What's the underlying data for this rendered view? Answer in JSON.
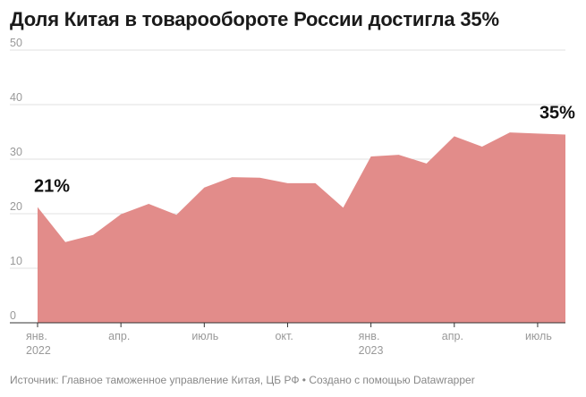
{
  "title": "Доля Китая в товарообороте России достигла 35%",
  "footer": "Источник: Главное таможенное управление Китая, ЦБ РФ • Создано с помощью Datawrapper",
  "chart_data": {
    "type": "area",
    "title": "Доля Китая в товарообороте России достигла 35%",
    "xlabel": "",
    "ylabel": "",
    "ylim": [
      0,
      50
    ],
    "yticks": [
      0,
      10,
      20,
      30,
      40,
      50
    ],
    "grid": true,
    "color": "#e08684",
    "x": [
      "2022-01",
      "2022-02",
      "2022-03",
      "2022-04",
      "2022-05",
      "2022-06",
      "2022-07",
      "2022-08",
      "2022-09",
      "2022-10",
      "2022-11",
      "2022-12",
      "2023-01",
      "2023-02",
      "2023-03",
      "2023-04",
      "2023-05",
      "2023-06",
      "2023-07",
      "2023-08"
    ],
    "values": [
      21.2,
      14.8,
      16.1,
      19.9,
      21.8,
      19.8,
      24.8,
      26.7,
      26.6,
      25.6,
      25.6,
      21.1,
      30.5,
      30.8,
      29.2,
      34.2,
      32.3,
      34.9,
      34.7,
      34.5
    ],
    "xticks": [
      {
        "index": 0,
        "label": "янв.",
        "sublabel": "2022"
      },
      {
        "index": 3,
        "label": "апр.",
        "sublabel": ""
      },
      {
        "index": 6,
        "label": "июль",
        "sublabel": ""
      },
      {
        "index": 9,
        "label": "окт.",
        "sublabel": ""
      },
      {
        "index": 12,
        "label": "янв.",
        "sublabel": "2023"
      },
      {
        "index": 15,
        "label": "апр.",
        "sublabel": ""
      },
      {
        "index": 18,
        "label": "июль",
        "sublabel": ""
      }
    ],
    "annotations": [
      {
        "index": 0,
        "text": "21%"
      },
      {
        "index": 18,
        "text": "35%"
      }
    ]
  }
}
